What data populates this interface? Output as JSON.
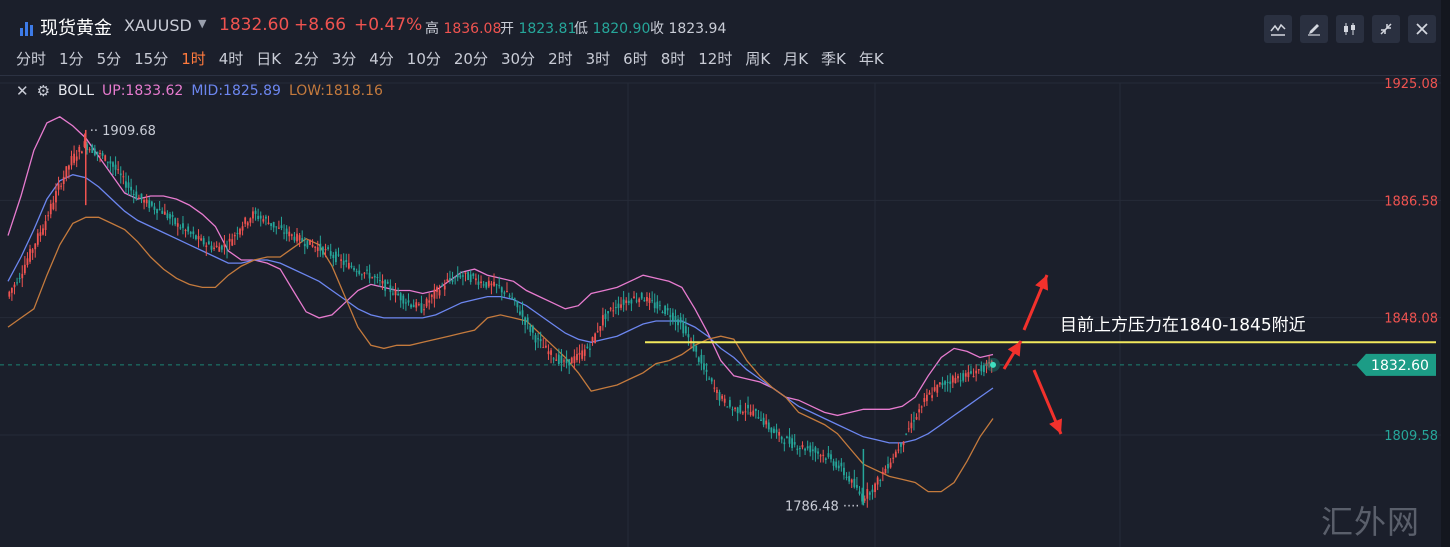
{
  "header": {
    "title": "现货黄金",
    "symbol": "XAUUSD",
    "price": "1832.60",
    "change": "+8.66",
    "change_pct": "+0.47%",
    "high_label": "高",
    "high": "1836.08",
    "open_label": "开",
    "open": "1823.81",
    "low_label": "低",
    "low": "1820.90",
    "close_label": "收",
    "close": "1823.94"
  },
  "toolbar": {
    "icons": [
      "line-chart-icon",
      "pencil-icon",
      "candlestick-icon",
      "shrink-icon",
      "close-icon"
    ]
  },
  "intervals": [
    "分时",
    "1分",
    "5分",
    "15分",
    "1时",
    "4时",
    "日K",
    "2分",
    "3分",
    "4分",
    "10分",
    "20分",
    "30分",
    "2时",
    "3时",
    "6时",
    "8时",
    "12时",
    "周K",
    "月K",
    "季K",
    "年K"
  ],
  "active_interval": "1时",
  "indicator": {
    "name": "BOLL",
    "up": "UP:1833.62",
    "mid": "MID:1825.89",
    "low": "LOW:1818.16"
  },
  "colors": {
    "up_candle": "#ef5350",
    "down_candle": "#26a69a",
    "boll_up": "#e77bcf",
    "boll_mid": "#6c86ef",
    "boll_low": "#c47a3d",
    "resistance": "#f2e85c",
    "price_tag": "#1c9c86",
    "arrow": "#f2312c"
  },
  "watermark": "汇外网",
  "chart_data": {
    "type": "candlestick",
    "y_axis_ticks": [
      {
        "value": 1925.08,
        "label": "1925.08"
      },
      {
        "value": 1886.58,
        "label": "1886.58"
      },
      {
        "value": 1848.08,
        "label": "1848.08"
      },
      {
        "value": 1809.58,
        "label": "1809.58"
      }
    ],
    "ylim": [
      1778,
      1935
    ],
    "current_price": {
      "value": 1832.6,
      "label": "1832.60"
    },
    "annotations": {
      "high_marker": {
        "value": 1909.68,
        "label": "1909.68"
      },
      "low_marker": {
        "value": 1786.48,
        "label": "1786.48"
      },
      "resistance_text": "目前上方压力在1840-1845附近",
      "resistance_level": 1840
    },
    "close_series": [
      1855,
      1862,
      1871,
      1880,
      1891,
      1900,
      1905,
      1902,
      1899,
      1893,
      1888,
      1885,
      1883,
      1879,
      1876,
      1873,
      1871,
      1872,
      1878,
      1882,
      1880,
      1877,
      1875,
      1873,
      1871,
      1869,
      1866,
      1864,
      1862,
      1859,
      1856,
      1853,
      1851,
      1856,
      1860,
      1862,
      1861,
      1859,
      1858,
      1854,
      1847,
      1840,
      1836,
      1833,
      1835,
      1839,
      1848,
      1852,
      1854,
      1855,
      1852,
      1850,
      1846,
      1838,
      1829,
      1822,
      1818,
      1818,
      1816,
      1811,
      1808,
      1806,
      1805,
      1803,
      1800,
      1795,
      1789,
      1793,
      1800,
      1807,
      1815,
      1822,
      1826,
      1828,
      1829,
      1831,
      1832.6
    ],
    "boll_upper": [
      1875,
      1888,
      1903,
      1912,
      1914,
      1911,
      1907,
      1901,
      1895,
      1889,
      1887,
      1888,
      1888,
      1887,
      1885,
      1882,
      1878,
      1870,
      1867,
      1867,
      1866,
      1864,
      1857,
      1850,
      1848,
      1849,
      1853,
      1857,
      1859,
      1858,
      1857,
      1857,
      1856,
      1857,
      1860,
      1863,
      1864,
      1862,
      1861,
      1860,
      1857,
      1855,
      1853,
      1851,
      1852,
      1856,
      1857,
      1858,
      1860,
      1862,
      1861,
      1860,
      1858,
      1851,
      1843,
      1834,
      1829,
      1828,
      1827,
      1825,
      1822,
      1821,
      1819,
      1817,
      1816,
      1817,
      1818,
      1818,
      1818,
      1819,
      1822,
      1829,
      1835,
      1838,
      1837,
      1835,
      1836
    ],
    "boll_mid": [
      1860,
      1868,
      1877,
      1887,
      1893,
      1895,
      1894,
      1891,
      1887,
      1883,
      1880,
      1878,
      1876,
      1874,
      1872,
      1870,
      1868,
      1866,
      1866,
      1867,
      1867,
      1866,
      1864,
      1862,
      1860,
      1857,
      1854,
      1851,
      1849,
      1848,
      1848,
      1848,
      1848,
      1849,
      1851,
      1853,
      1854,
      1855,
      1855,
      1854,
      1852,
      1849,
      1846,
      1843,
      1841,
      1840,
      1841,
      1842,
      1844,
      1846,
      1847,
      1847,
      1847,
      1845,
      1842,
      1838,
      1835,
      1831,
      1828,
      1825,
      1822,
      1819,
      1817,
      1815,
      1813,
      1811,
      1809,
      1808,
      1807,
      1807,
      1808,
      1810,
      1813,
      1816,
      1819,
      1822,
      1825
    ],
    "boll_lower": [
      1845,
      1848,
      1851,
      1862,
      1872,
      1879,
      1881,
      1881,
      1879,
      1877,
      1873,
      1868,
      1864,
      1861,
      1859,
      1858,
      1858,
      1862,
      1865,
      1867,
      1868,
      1868,
      1871,
      1874,
      1872,
      1865,
      1855,
      1845,
      1839,
      1838,
      1839,
      1839,
      1840,
      1841,
      1842,
      1843,
      1844,
      1848,
      1849,
      1848,
      1847,
      1843,
      1839,
      1835,
      1830,
      1824,
      1825,
      1826,
      1828,
      1830,
      1833,
      1834,
      1836,
      1839,
      1841,
      1842,
      1841,
      1834,
      1829,
      1825,
      1822,
      1817,
      1815,
      1813,
      1810,
      1805,
      1800,
      1798,
      1796,
      1795,
      1794,
      1791,
      1791,
      1794,
      1801,
      1809,
      1815
    ]
  }
}
